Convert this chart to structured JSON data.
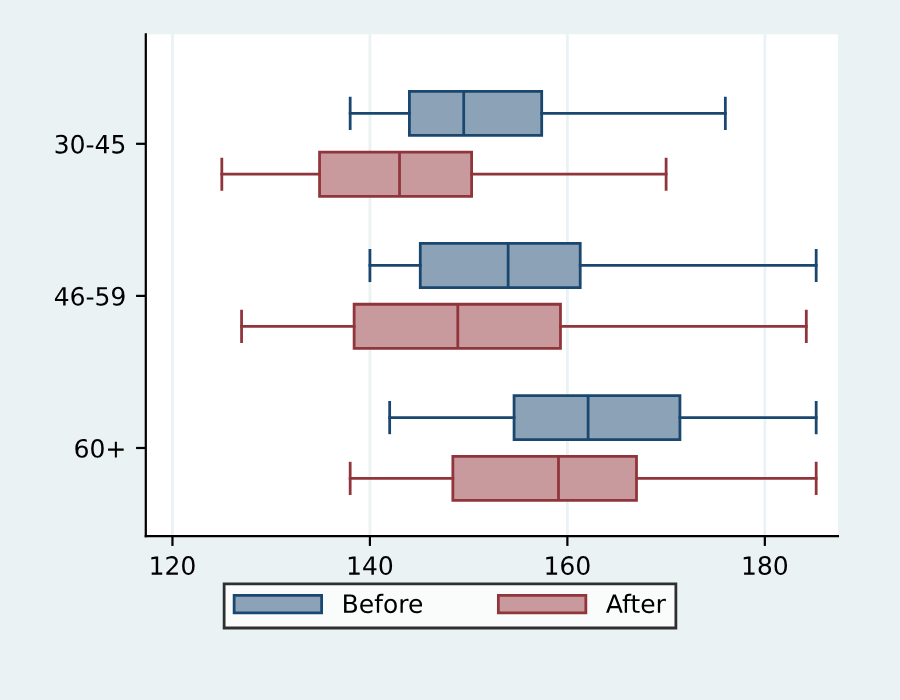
{
  "chart_data": {
    "type": "box",
    "orientation": "horizontal",
    "categories": [
      "30-45",
      "46-59",
      "60+"
    ],
    "series": [
      {
        "name": "Before",
        "color": "#1a476f",
        "boxes": [
          {
            "low": 138,
            "q1": 144,
            "median": 149.5,
            "q3": 157.4,
            "high": 176
          },
          {
            "low": 140,
            "q1": 145.1,
            "median": 154,
            "q3": 161.3,
            "high": 185.2
          },
          {
            "low": 142,
            "q1": 154.6,
            "median": 162.1,
            "q3": 171.4,
            "high": 185.2
          }
        ]
      },
      {
        "name": "After",
        "color": "#90353b",
        "boxes": [
          {
            "low": 125,
            "q1": 134.9,
            "median": 143,
            "q3": 150.3,
            "high": 170
          },
          {
            "low": 127,
            "q1": 138.4,
            "median": 148.9,
            "q3": 159.3,
            "high": 184.2
          },
          {
            "low": 138,
            "q1": 148.4,
            "median": 159.1,
            "q3": 167,
            "high": 185.2
          }
        ]
      }
    ],
    "xlim": [
      117.3,
      187.4
    ],
    "xticks": [
      120,
      140,
      160,
      180
    ],
    "grid": "x",
    "legend": "bottom"
  }
}
